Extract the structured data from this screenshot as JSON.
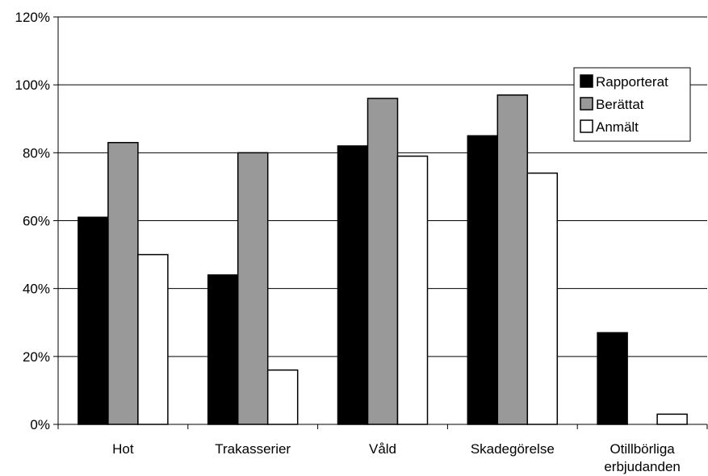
{
  "chart_data": {
    "type": "bar",
    "categories": [
      [
        "Hot"
      ],
      [
        "Trakasserier"
      ],
      [
        "Våld"
      ],
      [
        "Skadegörelse"
      ],
      [
        "Otillbörliga",
        "erbjudanden"
      ]
    ],
    "series": [
      {
        "name": "Rapporterat",
        "color": "#000000",
        "values": [
          61,
          44,
          82,
          85,
          27
        ]
      },
      {
        "name": "Berättat",
        "color": "#999999",
        "values": [
          83,
          80,
          96,
          97,
          0
        ]
      },
      {
        "name": "Anmält",
        "color": "#ffffff",
        "values": [
          50,
          16,
          79,
          74,
          3
        ]
      }
    ],
    "y_ticks": [
      "0%",
      "20%",
      "40%",
      "60%",
      "80%",
      "100%",
      "120%"
    ],
    "ylim": [
      0,
      120
    ],
    "y_unit": "percent",
    "title": "",
    "xlabel": "",
    "ylabel": "",
    "grid": true,
    "legend_position": "right"
  }
}
